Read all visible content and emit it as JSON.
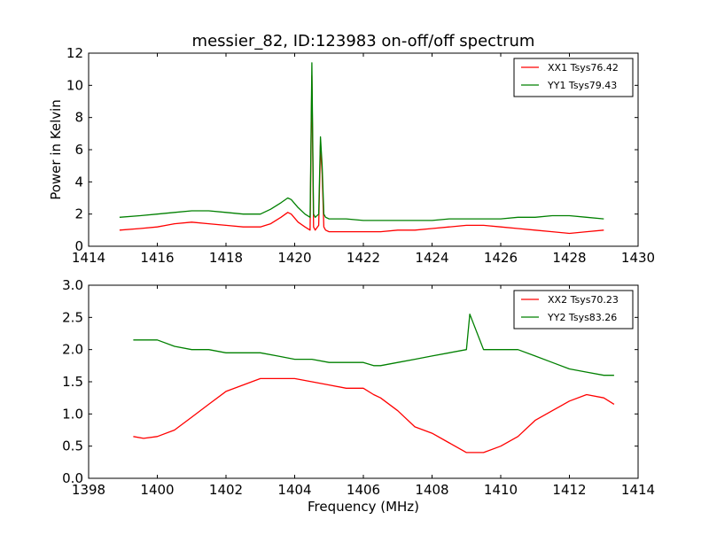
{
  "title": "messier_82, ID:123983 on-off/off spectrum",
  "colors": {
    "xx": "#ff0000",
    "yy": "#008000"
  },
  "chart_data": [
    {
      "type": "line",
      "title": "messier_82, ID:123983 on-off/off spectrum",
      "xlabel": "",
      "ylabel": "Power in Kelvin",
      "xlim": [
        1414,
        1430
      ],
      "ylim": [
        0,
        12
      ],
      "xticks": [
        1414,
        1416,
        1418,
        1420,
        1422,
        1424,
        1426,
        1428,
        1430
      ],
      "yticks": [
        0,
        2,
        4,
        6,
        8,
        10,
        12
      ],
      "legend_position": "top-right",
      "series": [
        {
          "name": "XX1 Tsys76.42",
          "color": "#ff0000",
          "x": [
            1414.9,
            1415.5,
            1416.0,
            1416.5,
            1417.0,
            1417.5,
            1418.0,
            1418.5,
            1419.0,
            1419.3,
            1419.6,
            1419.8,
            1419.9,
            1420.1,
            1420.3,
            1420.45,
            1420.5,
            1420.55,
            1420.6,
            1420.7,
            1420.75,
            1420.8,
            1420.85,
            1420.9,
            1421.0,
            1421.5,
            1422.0,
            1422.5,
            1423.0,
            1423.5,
            1424.0,
            1424.5,
            1425.0,
            1425.5,
            1426.0,
            1426.5,
            1427.0,
            1427.5,
            1428.0,
            1428.5,
            1429.0
          ],
          "y": [
            1.0,
            1.1,
            1.2,
            1.4,
            1.5,
            1.4,
            1.3,
            1.2,
            1.2,
            1.4,
            1.8,
            2.1,
            2.0,
            1.5,
            1.2,
            1.0,
            10.6,
            1.2,
            1.0,
            1.3,
            6.3,
            4.5,
            1.2,
            1.0,
            0.9,
            0.9,
            0.9,
            0.9,
            1.0,
            1.0,
            1.1,
            1.2,
            1.3,
            1.3,
            1.2,
            1.1,
            1.0,
            0.9,
            0.8,
            0.9,
            1.0
          ]
        },
        {
          "name": "YY1 Tsys79.43",
          "color": "#008000",
          "x": [
            1414.9,
            1415.5,
            1416.0,
            1416.5,
            1417.0,
            1417.5,
            1418.0,
            1418.5,
            1419.0,
            1419.3,
            1419.6,
            1419.8,
            1419.9,
            1420.1,
            1420.3,
            1420.45,
            1420.5,
            1420.55,
            1420.6,
            1420.7,
            1420.75,
            1420.8,
            1420.85,
            1420.9,
            1421.0,
            1421.5,
            1422.0,
            1422.5,
            1423.0,
            1423.5,
            1424.0,
            1424.5,
            1425.0,
            1425.5,
            1426.0,
            1426.5,
            1427.0,
            1427.5,
            1428.0,
            1428.5,
            1429.0
          ],
          "y": [
            1.8,
            1.9,
            2.0,
            2.1,
            2.2,
            2.2,
            2.1,
            2.0,
            2.0,
            2.3,
            2.7,
            3.0,
            2.9,
            2.4,
            2.0,
            1.8,
            11.4,
            2.0,
            1.8,
            2.0,
            6.8,
            5.0,
            2.0,
            1.8,
            1.7,
            1.7,
            1.6,
            1.6,
            1.6,
            1.6,
            1.6,
            1.7,
            1.7,
            1.7,
            1.7,
            1.8,
            1.8,
            1.9,
            1.9,
            1.8,
            1.7
          ]
        }
      ]
    },
    {
      "type": "line",
      "title": "",
      "xlabel": "Frequency (MHz)",
      "ylabel": "",
      "xlim": [
        1398,
        1414
      ],
      "ylim": [
        0,
        3
      ],
      "xticks": [
        1398,
        1400,
        1402,
        1404,
        1406,
        1408,
        1410,
        1412,
        1414
      ],
      "yticks": [
        0.0,
        0.5,
        1.0,
        1.5,
        2.0,
        2.5,
        3.0
      ],
      "legend_position": "top-right",
      "series": [
        {
          "name": "XX2 Tsys70.23",
          "color": "#ff0000",
          "x": [
            1399.3,
            1399.6,
            1400.0,
            1400.5,
            1401.0,
            1401.5,
            1402.0,
            1402.5,
            1403.0,
            1403.5,
            1404.0,
            1404.5,
            1405.0,
            1405.5,
            1406.0,
            1406.3,
            1406.5,
            1407.0,
            1407.5,
            1408.0,
            1408.5,
            1409.0,
            1409.5,
            1410.0,
            1410.5,
            1411.0,
            1411.5,
            1412.0,
            1412.5,
            1413.0,
            1413.3
          ],
          "y": [
            0.65,
            0.62,
            0.65,
            0.75,
            0.95,
            1.15,
            1.35,
            1.45,
            1.55,
            1.55,
            1.55,
            1.5,
            1.45,
            1.4,
            1.4,
            1.3,
            1.25,
            1.05,
            0.8,
            0.7,
            0.55,
            0.4,
            0.4,
            0.5,
            0.65,
            0.9,
            1.05,
            1.2,
            1.3,
            1.25,
            1.15
          ]
        },
        {
          "name": "YY2 Tsys83.26",
          "color": "#008000",
          "x": [
            1399.3,
            1399.6,
            1400.0,
            1400.5,
            1401.0,
            1401.5,
            1402.0,
            1402.5,
            1403.0,
            1403.5,
            1404.0,
            1404.5,
            1405.0,
            1405.5,
            1406.0,
            1406.3,
            1406.5,
            1407.0,
            1407.5,
            1408.0,
            1408.5,
            1409.0,
            1409.1,
            1409.5,
            1410.0,
            1410.5,
            1411.0,
            1411.5,
            1412.0,
            1412.5,
            1413.0,
            1413.3
          ],
          "y": [
            2.15,
            2.15,
            2.15,
            2.05,
            2.0,
            2.0,
            1.95,
            1.95,
            1.95,
            1.9,
            1.85,
            1.85,
            1.8,
            1.8,
            1.8,
            1.75,
            1.75,
            1.8,
            1.85,
            1.9,
            1.95,
            2.0,
            2.55,
            2.0,
            2.0,
            2.0,
            1.9,
            1.8,
            1.7,
            1.65,
            1.6,
            1.6
          ]
        }
      ]
    }
  ]
}
